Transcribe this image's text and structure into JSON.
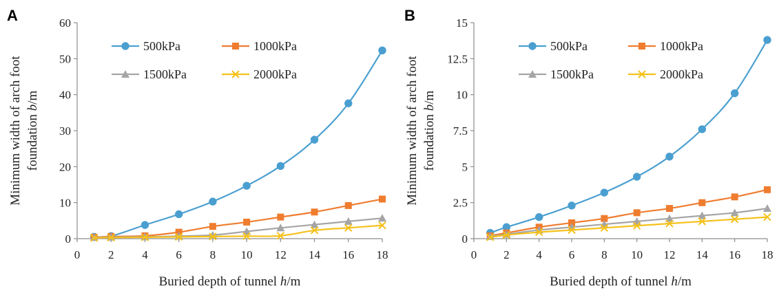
{
  "chart_data": [
    {
      "panel": "A",
      "type": "line",
      "xlabel": "Buried depth of tunnel h/m",
      "xlabel_parts": [
        "Buried depth of tunnel ",
        "h",
        "/m"
      ],
      "ylabel_line1": "Minimum width of arch foot",
      "ylabel_line2_parts": [
        "foundation ",
        "b",
        "/m"
      ],
      "xlim": [
        0,
        18
      ],
      "xticks": [
        0,
        2,
        4,
        6,
        8,
        10,
        12,
        14,
        16,
        18
      ],
      "ylim": [
        0,
        60
      ],
      "yticks": [
        0,
        10,
        20,
        30,
        40,
        50,
        60
      ],
      "grid": false,
      "legend_placement": "top-left, two rows",
      "x": [
        1,
        2,
        4,
        6,
        8,
        10,
        12,
        14,
        16,
        18
      ],
      "series": [
        {
          "name": "500kPa",
          "color": "#4a9fd0",
          "marker": "circle",
          "values": [
            0.5,
            0.7,
            3.8,
            6.8,
            10.3,
            14.7,
            20.2,
            27.5,
            37.6,
            52.3
          ]
        },
        {
          "name": "1000kPa",
          "color": "#ef7c2f",
          "marker": "square",
          "values": [
            0.4,
            0.6,
            0.8,
            1.8,
            3.4,
            4.6,
            6.0,
            7.4,
            9.2,
            11.0
          ]
        },
        {
          "name": "1500kPa",
          "color": "#a5a5a5",
          "marker": "triangle",
          "values": [
            0.3,
            0.4,
            0.5,
            0.7,
            1.0,
            2.0,
            3.0,
            3.9,
            4.8,
            5.7
          ]
        },
        {
          "name": "2000kPa",
          "color": "#f5c11a",
          "marker": "x",
          "values": [
            0.2,
            0.3,
            0.4,
            0.5,
            0.6,
            0.7,
            0.8,
            2.3,
            3.0,
            3.7
          ]
        }
      ]
    },
    {
      "panel": "B",
      "type": "line",
      "xlabel": "Buried depth of tunnel h/m",
      "xlabel_parts": [
        "Buried depth of tunnel ",
        "h",
        "/m"
      ],
      "ylabel_line1": "Minimum width of arch foot",
      "ylabel_line2_parts": [
        "foundation ",
        "b",
        "/m"
      ],
      "xlim": [
        0,
        18
      ],
      "xticks": [
        0,
        2,
        4,
        6,
        8,
        10,
        12,
        14,
        16,
        18
      ],
      "ylim": [
        0,
        15
      ],
      "yticks": [
        0,
        2.5,
        5,
        7.5,
        10,
        12.5,
        15
      ],
      "grid": false,
      "legend_placement": "top-left, two rows",
      "x": [
        1,
        2,
        4,
        6,
        8,
        10,
        12,
        14,
        16,
        18
      ],
      "series": [
        {
          "name": "500kPa",
          "color": "#4a9fd0",
          "marker": "circle",
          "values": [
            0.4,
            0.8,
            1.5,
            2.3,
            3.2,
            4.3,
            5.7,
            7.6,
            10.1,
            13.8
          ]
        },
        {
          "name": "1000kPa",
          "color": "#ef7c2f",
          "marker": "square",
          "values": [
            0.2,
            0.4,
            0.8,
            1.1,
            1.4,
            1.8,
            2.1,
            2.5,
            2.9,
            3.4
          ]
        },
        {
          "name": "1500kPa",
          "color": "#a5a5a5",
          "marker": "triangle",
          "values": [
            0.15,
            0.3,
            0.6,
            0.8,
            1.0,
            1.2,
            1.4,
            1.6,
            1.8,
            2.1
          ]
        },
        {
          "name": "2000kPa",
          "color": "#f5c11a",
          "marker": "x",
          "values": [
            0.1,
            0.25,
            0.45,
            0.6,
            0.75,
            0.9,
            1.05,
            1.2,
            1.35,
            1.5
          ]
        }
      ]
    }
  ]
}
